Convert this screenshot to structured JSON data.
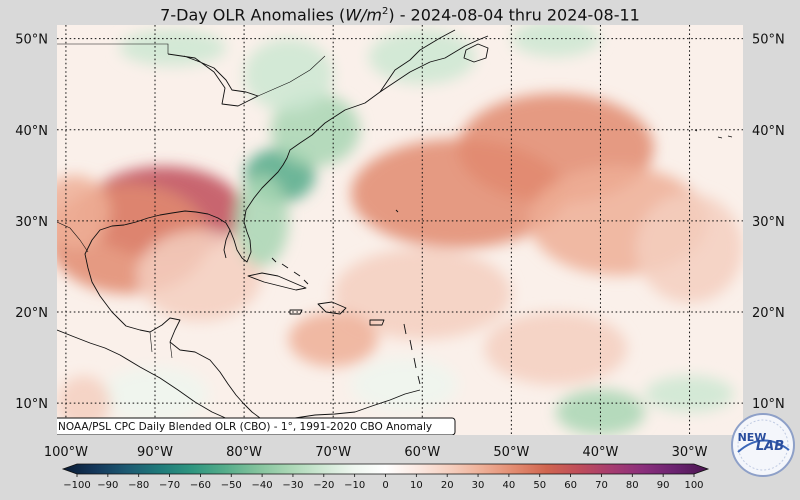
{
  "title": {
    "prefix": "7-Day OLR Anomalies (",
    "unit_base": "W/m",
    "unit_exp": "2",
    "suffix": ") - 2024-08-04 thru 2024-08-11"
  },
  "lat_labels": [
    "50°N",
    "40°N",
    "30°N",
    "20°N",
    "10°N"
  ],
  "lat_values": [
    50,
    40,
    30,
    20,
    10
  ],
  "lon_labels": [
    "100°W",
    "90°W",
    "80°W",
    "70°W",
    "60°W",
    "50°W",
    "40°W",
    "30°W"
  ],
  "lon_values": [
    -100,
    -90,
    -80,
    -70,
    -60,
    -50,
    -40,
    -30
  ],
  "extent": {
    "lon_min": -101,
    "lon_max": -24,
    "lat_min": 6.5,
    "lat_max": 51.5
  },
  "credit": "NOAA/PSL CPC Daily Blended OLR (CBO) - 1°, 1991-2020 CBO Anomaly",
  "colorbar": {
    "ticks": [
      -100,
      -90,
      -80,
      -70,
      -60,
      -50,
      -40,
      -30,
      -20,
      -10,
      0,
      10,
      20,
      30,
      40,
      50,
      60,
      70,
      80,
      90,
      100
    ],
    "tick_labels": [
      "−100",
      "−90",
      "−80",
      "−70",
      "−60",
      "−50",
      "−40",
      "−30",
      "−20",
      "−10",
      "0",
      "10",
      "20",
      "30",
      "40",
      "50",
      "60",
      "70",
      "80",
      "90",
      "100"
    ],
    "colors": [
      "#0a1b34",
      "#14375a",
      "#1d5a72",
      "#1f7a7a",
      "#2f9680",
      "#54ac8a",
      "#82c29c",
      "#a9d6b4",
      "#cde7d2",
      "#eef6ef",
      "#ffffff",
      "#fbe9e2",
      "#f5cfbf",
      "#eeaf97",
      "#e28b70",
      "#d06550",
      "#bf4d5a",
      "#a63c70",
      "#8a2f7c",
      "#6a2370",
      "#4a1650"
    ]
  },
  "logo": {
    "text_a": "NEW",
    "text_b": "LAB"
  },
  "anomaly_blobs": [
    {
      "lon": -89,
      "lat": 31,
      "value": 55,
      "rlon": 9,
      "rlat": 5
    },
    {
      "lon": -93,
      "lat": 28,
      "value": 35,
      "rlon": 9,
      "rlat": 6
    },
    {
      "lon": -99,
      "lat": 31,
      "value": 25,
      "rlon": 4,
      "rlat": 4
    },
    {
      "lon": -85,
      "lat": 24,
      "value": 20,
      "rlon": 7,
      "rlat": 5
    },
    {
      "lon": -76,
      "lat": 35,
      "value": -55,
      "rlon": 4,
      "rlat": 3
    },
    {
      "lon": -78,
      "lat": 30,
      "value": -35,
      "rlon": 3,
      "rlat": 5
    },
    {
      "lon": -72,
      "lat": 40,
      "value": -30,
      "rlon": 5,
      "rlat": 4
    },
    {
      "lon": -75,
      "lat": 46,
      "value": -25,
      "rlon": 5,
      "rlat": 4
    },
    {
      "lon": -88,
      "lat": 49,
      "value": -25,
      "rlon": 6,
      "rlat": 2
    },
    {
      "lon": -60,
      "lat": 48,
      "value": -20,
      "rlon": 6,
      "rlat": 3
    },
    {
      "lon": -45,
      "lat": 50,
      "value": -20,
      "rlon": 5,
      "rlat": 2
    },
    {
      "lon": -56,
      "lat": 33,
      "value": 35,
      "rlon": 12,
      "rlat": 6
    },
    {
      "lon": -45,
      "lat": 38,
      "value": 35,
      "rlon": 11,
      "rlat": 6
    },
    {
      "lon": -38,
      "lat": 30,
      "value": 25,
      "rlon": 10,
      "rlat": 6
    },
    {
      "lon": -30,
      "lat": 27,
      "value": 20,
      "rlon": 6,
      "rlat": 6
    },
    {
      "lon": -60,
      "lat": 22,
      "value": 20,
      "rlon": 10,
      "rlat": 5
    },
    {
      "lon": -45,
      "lat": 16,
      "value": 20,
      "rlon": 8,
      "rlat": 4
    },
    {
      "lon": -70,
      "lat": 17,
      "value": 25,
      "rlon": 5,
      "rlat": 3
    },
    {
      "lon": -40,
      "lat": 9,
      "value": -35,
      "rlon": 5,
      "rlat": 2.5
    },
    {
      "lon": -30,
      "lat": 11,
      "value": -20,
      "rlon": 5,
      "rlat": 2
    },
    {
      "lon": -62,
      "lat": 12,
      "value": -15,
      "rlon": 6,
      "rlat": 3
    },
    {
      "lon": -90,
      "lat": 11,
      "value": -10,
      "rlon": 6,
      "rlat": 3
    },
    {
      "lon": -98,
      "lat": 10,
      "value": 20,
      "rlon": 3,
      "rlat": 3
    }
  ]
}
